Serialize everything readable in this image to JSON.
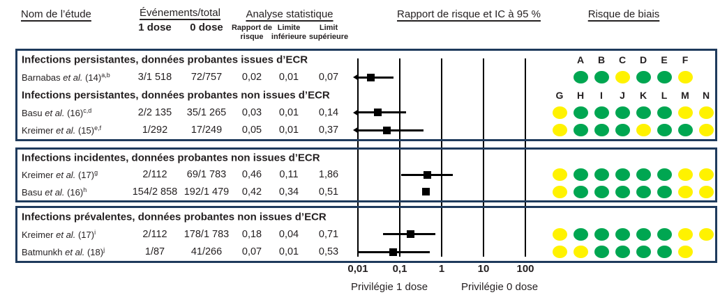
{
  "header": {
    "col_study": "Nom de l’étude",
    "col_events": "Événements/total",
    "col_events_sub": [
      "1 dose",
      "0 dose"
    ],
    "col_stats": "Analyse statistique",
    "col_stats_sub": [
      "Rapport de risque",
      "Limite inférieure",
      "Limit supérieure"
    ],
    "col_plot": "Rapport de risque et IC à 95 %",
    "col_bias": "Risque de biais"
  },
  "axis": {
    "ticks": [
      "0,01",
      "0,1",
      "1",
      "10",
      "100"
    ],
    "label_left": "Privilégie 1 dose",
    "label_right": "Privilégie 0 dose"
  },
  "bias_letters": {
    "top": [
      "A",
      "B",
      "C",
      "D",
      "E",
      "F"
    ],
    "bottom": [
      "G",
      "H",
      "I",
      "J",
      "K",
      "L",
      "M",
      "N"
    ]
  },
  "colors": {
    "green": "#00a651",
    "yellow": "#fff200",
    "navy": "#1e3a5c",
    "ink": "#231f20"
  },
  "sections": [
    {
      "groups": [
        {
          "title": "Infections persistantes, données probantes issues d’ECR",
          "letters": "top",
          "rows": [
            {
              "study": "Barnabas",
              "etal": "et al.",
              "ref": "(14)",
              "sup": "a,b",
              "events_1dose": "3/1 518",
              "events_0dose": "72/757",
              "rr": "0,02",
              "ci_low": "0,01",
              "ci_high": "0,07",
              "rr_value": 0.02,
              "ci_low_value": 0.01,
              "ci_high_value": 0.07,
              "clipped_left": true,
              "bias_start_col": 1,
              "bias": [
                "green",
                "green",
                "yellow",
                "green",
                "green",
                "yellow"
              ]
            }
          ]
        },
        {
          "title": "Infections persistantes, données probantes non issues d’ECR",
          "letters": "bottom",
          "rows": [
            {
              "study": "Basu",
              "etal": "et al.",
              "ref": "(16)",
              "sup": "c,d",
              "events_1dose": "2/2 135",
              "events_0dose": "35/1 265",
              "rr": "0,03",
              "ci_low": "0,01",
              "ci_high": "0,14",
              "rr_value": 0.03,
              "ci_low_value": 0.01,
              "ci_high_value": 0.14,
              "clipped_left": true,
              "bias_start_col": 0,
              "bias": [
                "yellow",
                "green",
                "green",
                "green",
                "green",
                "green",
                "yellow",
                "yellow"
              ]
            },
            {
              "study": "Kreimer",
              "etal": "et al.",
              "ref": "(15)",
              "sup": "e,f",
              "events_1dose": "1/292",
              "events_0dose": "17/249",
              "rr": "0,05",
              "ci_low": "0,01",
              "ci_high": "0,37",
              "rr_value": 0.05,
              "ci_low_value": 0.01,
              "ci_high_value": 0.37,
              "clipped_left": true,
              "bias_start_col": 0,
              "bias": [
                "yellow",
                "green",
                "green",
                "green",
                "yellow",
                "green",
                "green",
                "yellow"
              ]
            }
          ]
        }
      ]
    },
    {
      "groups": [
        {
          "title": "Infections incidentes, données probantes non issues d’ECR",
          "letters": null,
          "rows": [
            {
              "study": "Kreimer",
              "etal": "et al.",
              "ref": "(17)",
              "sup": "g",
              "events_1dose": "2/112",
              "events_0dose": "69/1 783",
              "rr": "0,46",
              "ci_low": "0,11",
              "ci_high": "1,86",
              "rr_value": 0.46,
              "ci_low_value": 0.11,
              "ci_high_value": 1.86,
              "clipped_left": false,
              "bias_start_col": 0,
              "bias": [
                "yellow",
                "green",
                "green",
                "green",
                "green",
                "green",
                "yellow",
                "yellow"
              ]
            },
            {
              "study": "Basu",
              "etal": "et al.",
              "ref": "(16)",
              "sup": "h",
              "events_1dose": "154/2 858",
              "events_0dose": "192/1 479",
              "rr": "0,42",
              "ci_low": "0,34",
              "ci_high": "0,51",
              "rr_value": 0.42,
              "ci_low_value": 0.34,
              "ci_high_value": 0.51,
              "clipped_left": false,
              "bias_start_col": 0,
              "bias": [
                "yellow",
                "green",
                "green",
                "green",
                "green",
                "green",
                "yellow",
                "yellow"
              ]
            }
          ]
        }
      ]
    },
    {
      "groups": [
        {
          "title": "Infections prévalentes, données probantes non issues d’ECR",
          "letters": null,
          "rows": [
            {
              "study": "Kreimer",
              "etal": "et al.",
              "ref": "(17)",
              "sup": "i",
              "events_1dose": "2/112",
              "events_0dose": "178/1 783",
              "rr": "0,18",
              "ci_low": "0,04",
              "ci_high": "0,71",
              "rr_value": 0.18,
              "ci_low_value": 0.04,
              "ci_high_value": 0.71,
              "clipped_left": false,
              "bias_start_col": 0,
              "bias": [
                "yellow",
                "green",
                "green",
                "green",
                "green",
                "green",
                "yellow",
                "yellow"
              ]
            },
            {
              "study": "Batmunkh",
              "etal": "et al.",
              "ref": "(18)",
              "sup": "j",
              "events_1dose": "1/87",
              "events_0dose": "41/266",
              "rr": "0,07",
              "ci_low": "0,01",
              "ci_high": "0,53",
              "rr_value": 0.07,
              "ci_low_value": 0.01,
              "ci_high_value": 0.53,
              "clipped_left": false,
              "bias_start_col": 0,
              "bias": [
                "yellow",
                "yellow",
                "green",
                "green",
                "green",
                "green",
                "yellow"
              ]
            }
          ]
        }
      ]
    }
  ],
  "chart_data": {
    "type": "scatter",
    "variant": "forest-plot",
    "title": "Rapport de risque et IC à 95 %",
    "x_scale": "log10",
    "xlim": [
      0.01,
      100
    ],
    "x_ticks": [
      0.01,
      0.1,
      1,
      10,
      100
    ],
    "x_tick_labels": [
      "0,01",
      "0,1",
      "1",
      "10",
      "100"
    ],
    "favours_left": "Privilégie 1 dose",
    "favours_right": "Privilégie 0 dose",
    "grid": true,
    "series": [
      {
        "name": "Barnabas et al. (14)",
        "group": "Infections persistantes, ECR",
        "rr": 0.02,
        "ci": [
          0.01,
          0.07
        ],
        "events_1dose": "3/1 518",
        "events_0dose": "72/757"
      },
      {
        "name": "Basu et al. (16)",
        "group": "Infections persistantes, non-ECR",
        "rr": 0.03,
        "ci": [
          0.01,
          0.14
        ],
        "events_1dose": "2/2 135",
        "events_0dose": "35/1 265"
      },
      {
        "name": "Kreimer et al. (15)",
        "group": "Infections persistantes, non-ECR",
        "rr": 0.05,
        "ci": [
          0.01,
          0.37
        ],
        "events_1dose": "1/292",
        "events_0dose": "17/249"
      },
      {
        "name": "Kreimer et al. (17)",
        "group": "Infections incidentes, non-ECR",
        "rr": 0.46,
        "ci": [
          0.11,
          1.86
        ],
        "events_1dose": "2/112",
        "events_0dose": "69/1 783"
      },
      {
        "name": "Basu et al. (16)",
        "group": "Infections incidentes, non-ECR",
        "rr": 0.42,
        "ci": [
          0.34,
          0.51
        ],
        "events_1dose": "154/2 858",
        "events_0dose": "192/1 479"
      },
      {
        "name": "Kreimer et al. (17)",
        "group": "Infections prévalentes, non-ECR",
        "rr": 0.18,
        "ci": [
          0.04,
          0.71
        ],
        "events_1dose": "2/112",
        "events_0dose": "178/1 783"
      },
      {
        "name": "Batmunkh et al. (18)",
        "group": "Infections prévalentes, non-ECR",
        "rr": 0.07,
        "ci": [
          0.01,
          0.53
        ],
        "events_1dose": "1/87",
        "events_0dose": "41/266"
      }
    ]
  }
}
